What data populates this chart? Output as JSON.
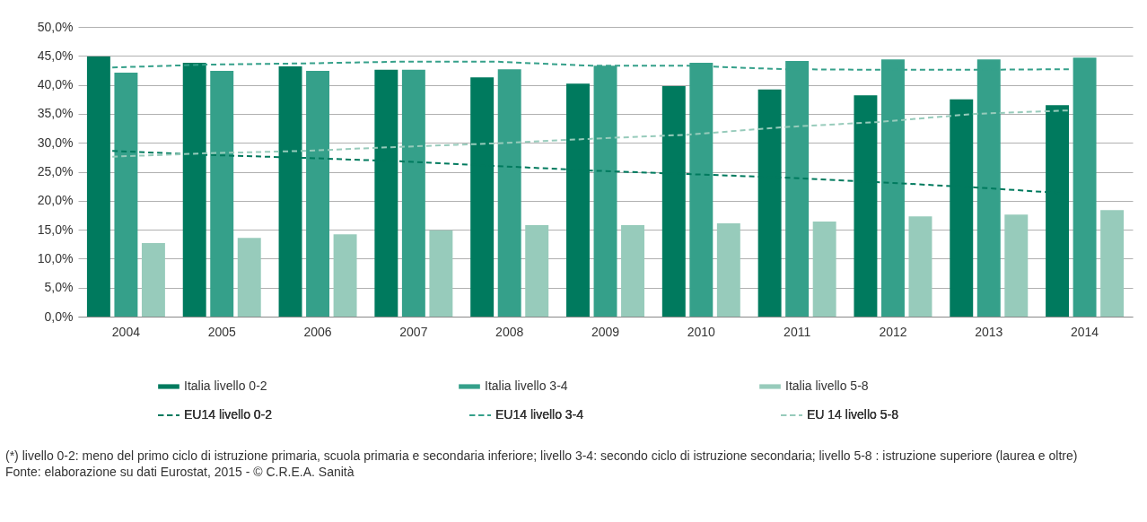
{
  "chart_data": {
    "type": "bar",
    "categories": [
      "2004",
      "2005",
      "2006",
      "2007",
      "2008",
      "2009",
      "2010",
      "2011",
      "2012",
      "2013",
      "2014"
    ],
    "series": [
      {
        "name": "Italia livello 0-2",
        "color": "#007a5e",
        "values": [
          44.9,
          43.8,
          43.2,
          42.6,
          41.3,
          40.2,
          39.8,
          39.2,
          38.2,
          37.5,
          36.5
        ]
      },
      {
        "name": "Italia livello 3-4",
        "color": "#35a08a",
        "values": [
          42.1,
          42.4,
          42.4,
          42.6,
          42.7,
          43.3,
          43.8,
          44.1,
          44.4,
          44.4,
          44.7
        ]
      },
      {
        "name": "Italia livello 5-8",
        "color": "#97cbbb",
        "values": [
          12.7,
          13.6,
          14.2,
          14.9,
          15.8,
          15.8,
          16.1,
          16.4,
          17.3,
          17.6,
          18.4
        ]
      },
      {
        "name": "EU14 livello 0-2",
        "type": "line",
        "line_style": "dashed",
        "color": "#007a5e",
        "values": [
          28.6,
          27.9,
          27.4,
          26.8,
          26.0,
          25.2,
          24.6,
          24.0,
          23.2,
          22.3,
          21.2
        ]
      },
      {
        "name": "EU14 livello 3-4",
        "type": "line",
        "line_style": "dashed",
        "color": "#35a08a",
        "values": [
          43.0,
          43.5,
          43.7,
          44.0,
          44.0,
          43.3,
          43.3,
          42.7,
          42.6,
          42.6,
          42.7
        ]
      },
      {
        "name": "EU 14 livello 5-8",
        "type": "line",
        "line_style": "dashed",
        "color": "#97cbbb",
        "values": [
          27.6,
          28.2,
          28.6,
          29.3,
          29.9,
          30.7,
          31.4,
          32.7,
          33.6,
          35.0,
          35.6
        ]
      }
    ],
    "ylim": [
      0,
      50
    ],
    "yticks": [
      {
        "value": 0,
        "label": "0,0%"
      },
      {
        "value": 5,
        "label": "5,0%"
      },
      {
        "value": 10,
        "label": "10,0%"
      },
      {
        "value": 15,
        "label": "15,0%"
      },
      {
        "value": 20,
        "label": "20,0%"
      },
      {
        "value": 25,
        "label": "25,0%"
      },
      {
        "value": 30,
        "label": "30,0%"
      },
      {
        "value": 35,
        "label": "35,0%"
      },
      {
        "value": 40,
        "label": "40,0%"
      },
      {
        "value": 45,
        "label": "45,0%"
      },
      {
        "value": 50,
        "label": "50,0%"
      }
    ],
    "grid": "y",
    "legend": "bottom",
    "marker": "none",
    "annotations": [
      "(*) livello 0-2: meno del primo ciclo di  istruzione primaria, scuola primaria e secondaria inferiore; livello 3-4: secondo ciclo di istruzione secondaria; livello 5-8 : istruzione superiore (laurea e oltre)",
      "Fonte: elaborazione su dati Eurostat, 2015 - © C.R.E.A. Sanità"
    ]
  }
}
